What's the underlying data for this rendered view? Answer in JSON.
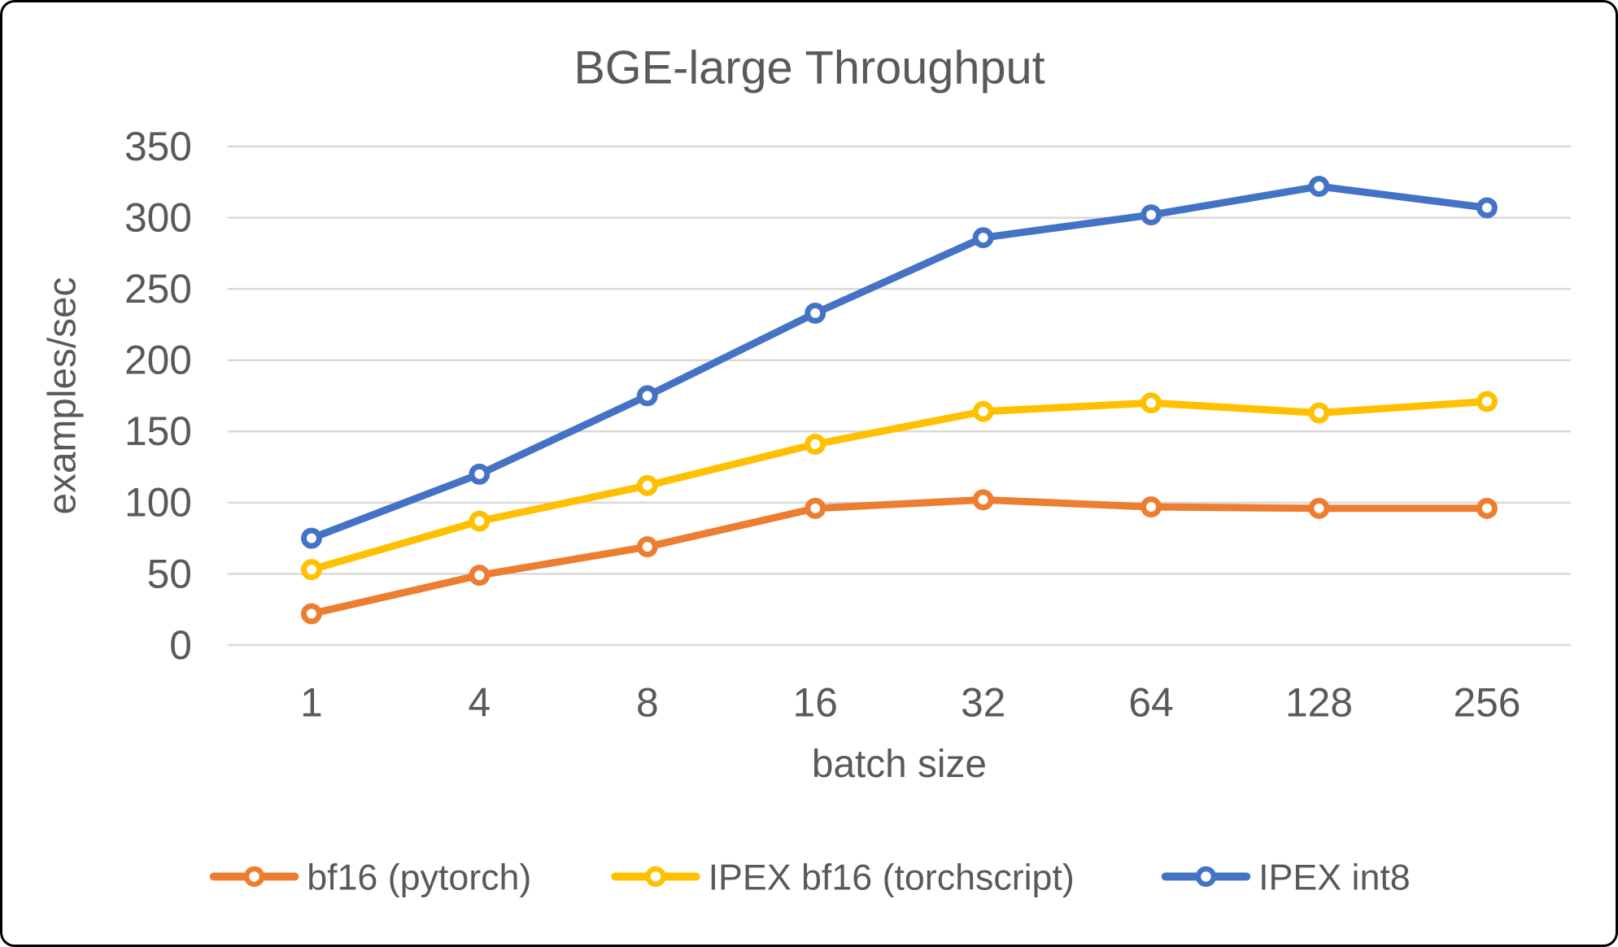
{
  "chart_data": {
    "type": "line",
    "title": "BGE-large Throughput",
    "xlabel": "batch size",
    "ylabel": "examples/sec",
    "categories": [
      "1",
      "4",
      "8",
      "16",
      "32",
      "64",
      "128",
      "256"
    ],
    "series": [
      {
        "name": "bf16 (pytorch)",
        "color": "#ED7D31",
        "values": [
          22,
          49,
          69,
          96,
          102,
          97,
          96,
          96
        ]
      },
      {
        "name": "IPEX bf16 (torchscript)",
        "color": "#FFC000",
        "values": [
          53,
          87,
          112,
          141,
          164,
          170,
          163,
          171
        ]
      },
      {
        "name": "IPEX int8",
        "color": "#4472C4",
        "values": [
          75,
          120,
          175,
          233,
          286,
          302,
          322,
          307
        ]
      }
    ],
    "ylim": [
      0,
      350
    ],
    "ytick_step": 50,
    "grid": "horizontal",
    "legend_position": "bottom",
    "marker": "open-circle",
    "text_color": "#595959",
    "gridline_color": "#D9D9D9"
  }
}
